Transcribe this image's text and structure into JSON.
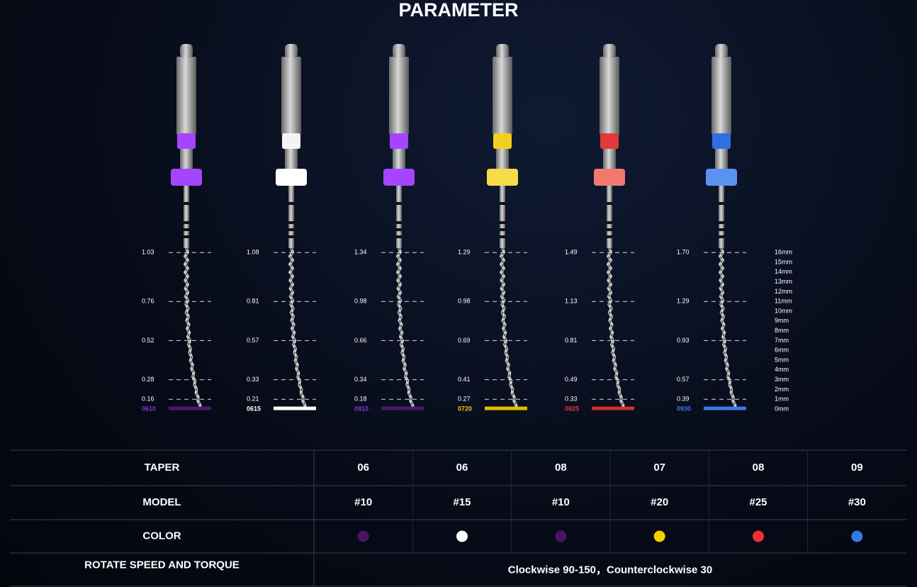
{
  "title": "PARAMETER",
  "files": [
    {
      "code": "0610",
      "code_color": "#8a34d0",
      "ring_color": "#a545ff",
      "stop_color": "#a545ff",
      "bar_color": "#4a1a6a",
      "diameters": [
        "1.03",
        "0.76",
        "0.52",
        "0.28",
        "0.16"
      ]
    },
    {
      "code": "0615",
      "code_color": "#ffffff",
      "ring_color": "#f4f4f4",
      "stop_color": "#ffffff",
      "bar_color": "#ffffff",
      "diameters": [
        "1.08",
        "0.81",
        "0.57",
        "0.33",
        "0.21"
      ]
    },
    {
      "code": "0810",
      "code_color": "#8a34d0",
      "ring_color": "#a545ff",
      "stop_color": "#a545ff",
      "bar_color": "#4a1a6a",
      "diameters": [
        "1.34",
        "0.98",
        "0.66",
        "0.34",
        "0.18"
      ]
    },
    {
      "code": "0720",
      "code_color": "#f0c800",
      "ring_color": "#f2d020",
      "stop_color": "#f6dc4a",
      "bar_color": "#e0be00",
      "diameters": [
        "1.29",
        "0.98",
        "0.69",
        "0.41",
        "0.27"
      ]
    },
    {
      "code": "0825",
      "code_color": "#e03434",
      "ring_color": "#e23a3a",
      "stop_color": "#f07a70",
      "bar_color": "#d03030",
      "diameters": [
        "1.49",
        "1.13",
        "0.81",
        "0.49",
        "0.33"
      ]
    },
    {
      "code": "0930",
      "code_color": "#3a78e8",
      "ring_color": "#2f6fe0",
      "stop_color": "#5b92f2",
      "bar_color": "#3a78e8",
      "diameters": [
        "1.70",
        "1.29",
        "0.93",
        "0.57",
        "0.39"
      ]
    }
  ],
  "scale": [
    "16mm",
    "15mm",
    "14mm",
    "13mm",
    "12mm",
    "11mm",
    "10mm",
    "9mm",
    "8mm",
    "7mm",
    "6mm",
    "5mm",
    "4mm",
    "3mm",
    "2mm",
    "1mm",
    "0mm"
  ],
  "table": {
    "rows": [
      {
        "label": "TAPER",
        "cells": [
          "06",
          "06",
          "08",
          "07",
          "08",
          "09"
        ]
      },
      {
        "label": "MODEL",
        "cells": [
          "#10",
          "#15",
          "#10",
          "#20",
          "#25",
          "#30"
        ]
      },
      {
        "label": "COLOR",
        "swatches": [
          "#4a1560",
          "#ffffff",
          "#4a1560",
          "#f5d000",
          "#f03030",
          "#3a78e8"
        ]
      },
      {
        "label": "ROTATE SPEED AND TORQUE",
        "span": "Clockwise 90-150，Counterclockwise 30"
      }
    ]
  }
}
